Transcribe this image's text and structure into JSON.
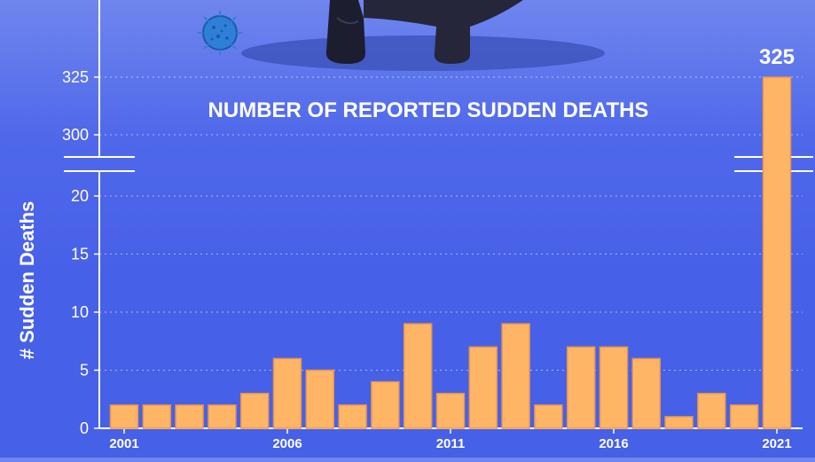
{
  "chart_data": {
    "type": "bar",
    "title": "NUMBER OF REPORTED SUDDEN DEATHS",
    "ylabel": "# Sudden Deaths",
    "xlabel": "",
    "categories": [
      "2001",
      "2002",
      "2003",
      "2004",
      "2005",
      "2006",
      "2007",
      "2008",
      "2009",
      "2010",
      "2011",
      "2012",
      "2013",
      "2014",
      "2015",
      "2016",
      "2017",
      "2018",
      "2019",
      "2020",
      "2021"
    ],
    "values": [
      2,
      2,
      2,
      2,
      3,
      6,
      5,
      2,
      4,
      9,
      3,
      7,
      9,
      2,
      7,
      7,
      6,
      1,
      3,
      2,
      325
    ],
    "x_tick_labels": [
      "2001",
      "2006",
      "2011",
      "2016",
      "2021"
    ],
    "y_ticks_lower": [
      0,
      5,
      10,
      15,
      20
    ],
    "y_ticks_upper": [
      300,
      325
    ],
    "ylim_lower": [
      0,
      22
    ],
    "ylim_upper": [
      292,
      340
    ],
    "broken_axis": true,
    "annotation": "325",
    "grid": true,
    "bar_color": "#ffb566",
    "bar_stroke": "#e8954a"
  },
  "colors": {
    "background_top": "#6f86ee",
    "background_bottom": "#4660e8",
    "text": "#ffffff"
  },
  "illustration": {
    "icons": [
      "virus-icon",
      "person-silhouette-icon"
    ]
  }
}
